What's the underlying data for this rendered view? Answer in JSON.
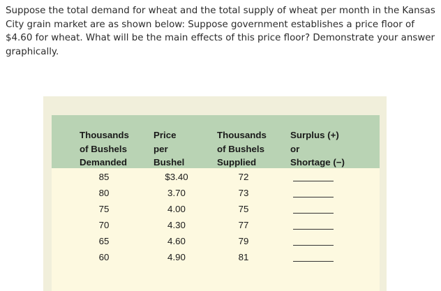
{
  "question": "Suppose the total demand for wheat and the total supply of wheat per month in the Kansas City grain market are as shown below: Suppose government establishes a price floor of $4.60 for wheat. What will be the main effects of this price floor? Demonstrate your answer graphically.",
  "table": {
    "headers": {
      "demanded": [
        "Thousands",
        "of Bushels",
        "Demanded"
      ],
      "price": [
        "Price",
        "per",
        "Bushel"
      ],
      "supplied": [
        "Thousands",
        "of Bushels",
        "Supplied"
      ],
      "surplus": [
        "Surplus (+)",
        "or",
        "Shortage (−)"
      ]
    },
    "rows": [
      {
        "demanded": "85",
        "price": "$3.40",
        "supplied": "72"
      },
      {
        "demanded": "80",
        "price": "3.70",
        "supplied": "73"
      },
      {
        "demanded": "75",
        "price": "4.00",
        "supplied": "75"
      },
      {
        "demanded": "70",
        "price": "4.30",
        "supplied": "77"
      },
      {
        "demanded": "65",
        "price": "4.60",
        "supplied": "79"
      },
      {
        "demanded": "60",
        "price": "4.90",
        "supplied": "81"
      }
    ]
  }
}
